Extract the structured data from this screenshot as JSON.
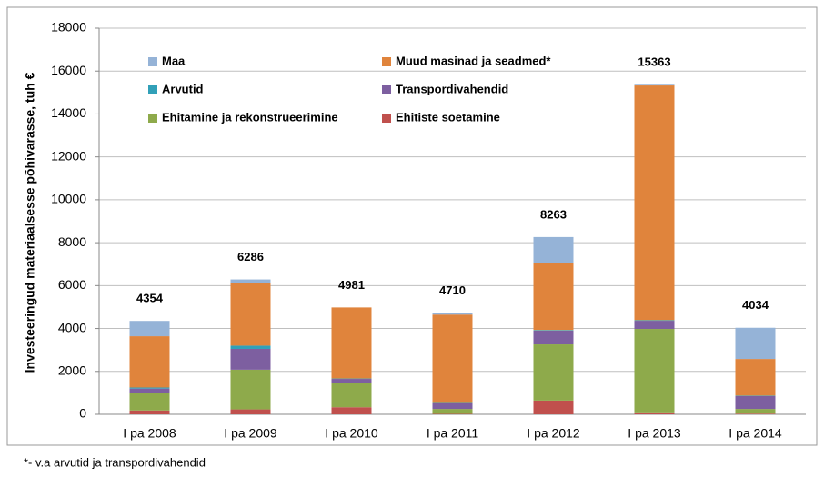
{
  "chart_data": {
    "type": "stacked_bar",
    "ylabel": "Investeeringud materiaalsesse põhivarasse, tuh €",
    "footnote": "*- v.a arvutid ja transpordivahendid",
    "categories": [
      "I pa 2008",
      "I pa 2009",
      "I pa 2010",
      "I pa 2011",
      "I pa 2012",
      "I pa 2013",
      "I pa 2014"
    ],
    "series": [
      {
        "name": "Ehitiste soetamine",
        "color": "#c0504d",
        "values": [
          180,
          230,
          330,
          20,
          640,
          50,
          30
        ]
      },
      {
        "name": "Ehitamine ja rekonstrueerimine",
        "color": "#8eaa4b",
        "values": [
          800,
          1850,
          1110,
          230,
          2620,
          3930,
          220
        ]
      },
      {
        "name": "Transpordivahendid",
        "color": "#7d5fa0",
        "values": [
          220,
          970,
          210,
          300,
          640,
          380,
          600
        ]
      },
      {
        "name": "Arvutid",
        "color": "#31a0b8",
        "values": [
          50,
          150,
          20,
          20,
          30,
          30,
          20
        ]
      },
      {
        "name": "Muud masinad ja seadmed*",
        "color": "#e0843c",
        "values": [
          2390,
          2900,
          3311,
          4080,
          3140,
          10940,
          1710
        ]
      },
      {
        "name": "Maa",
        "color": "#95b3d7",
        "values": [
          714,
          186,
          0,
          60,
          1193,
          33,
          1454
        ]
      }
    ],
    "totals": [
      4354,
      6286,
      4981,
      4710,
      8263,
      15363,
      4034
    ],
    "ylim": [
      0,
      18000
    ],
    "yticks": [
      0,
      2000,
      4000,
      6000,
      8000,
      10000,
      12000,
      14000,
      16000,
      18000
    ],
    "grid": true
  }
}
